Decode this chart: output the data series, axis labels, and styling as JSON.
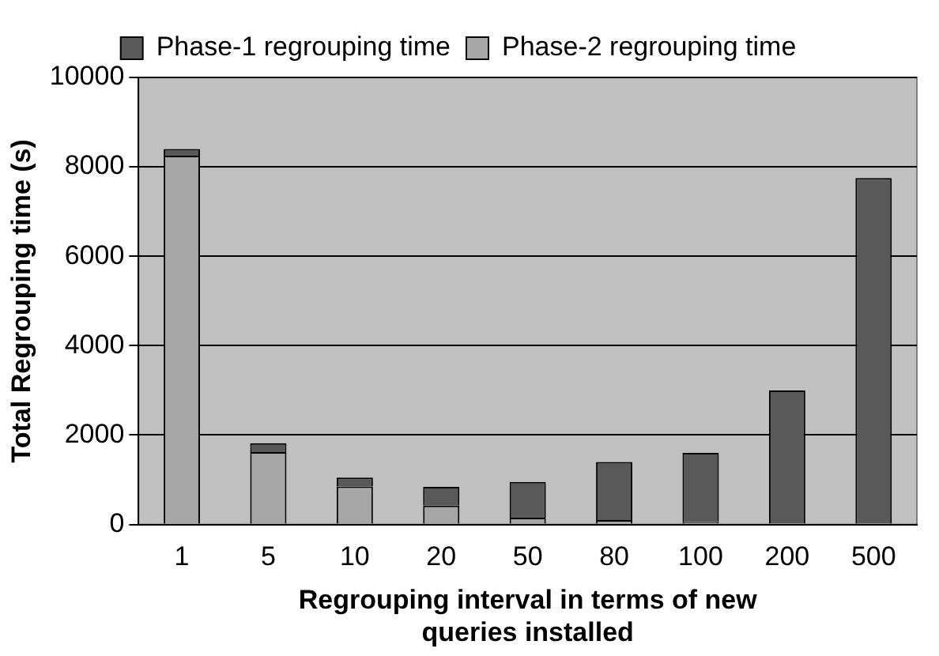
{
  "chart_data": {
    "type": "bar",
    "stacked": true,
    "xlabel": "Regrouping interval in terms of new queries installed",
    "ylabel": "Total Regrouping time (s)",
    "categories": [
      "1",
      "5",
      "10",
      "20",
      "50",
      "80",
      "100",
      "200",
      "500"
    ],
    "series": [
      {
        "name": "Phase-2 regrouping time",
        "color": "#a6a6a6",
        "values": [
          8250,
          1620,
          850,
          420,
          150,
          100,
          50,
          null,
          null
        ]
      },
      {
        "name": "Phase-1 regrouping time",
        "color": "#595959",
        "values": [
          150,
          200,
          200,
          420,
          800,
          1300,
          1550,
          3000,
          7750
        ]
      }
    ],
    "ylim": [
      0,
      10000
    ],
    "yticks": [
      0,
      2000,
      4000,
      6000,
      8000,
      10000
    ],
    "grid": "y",
    "legend": "top"
  }
}
